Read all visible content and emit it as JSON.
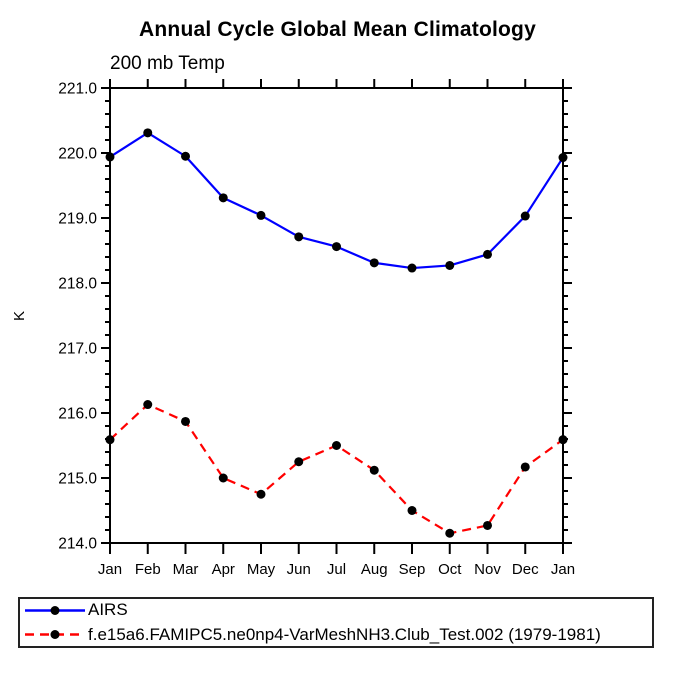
{
  "chart_data": {
    "type": "line",
    "title": "Annual Cycle Global Mean Climatology",
    "subtitle": "200 mb Temp",
    "xlabel": "",
    "ylabel": "K",
    "categories": [
      "Jan",
      "Feb",
      "Mar",
      "Apr",
      "May",
      "Jun",
      "Jul",
      "Aug",
      "Sep",
      "Oct",
      "Nov",
      "Dec",
      "Jan"
    ],
    "ylim": [
      214.0,
      221.0
    ],
    "ytick_interval": 1.0,
    "yminor_interval": 0.2,
    "ytick_labels": [
      "214.0",
      "215.0",
      "216.0",
      "217.0",
      "218.0",
      "219.0",
      "220.0",
      "221.0"
    ],
    "grid": false,
    "legend_position": "bottom-left",
    "axis_color": "#000000",
    "series": [
      {
        "name": "AIRS",
        "color": "#0000ff",
        "line_style": "solid",
        "marker": "circle",
        "marker_color": "#000000",
        "values": [
          219.94,
          220.31,
          219.95,
          219.31,
          219.04,
          218.71,
          218.56,
          218.31,
          218.23,
          218.27,
          218.44,
          219.03,
          219.93
        ]
      },
      {
        "name": "f.e15a6.FAMIPC5.ne0np4-VarMeshNH3.Club_Test.002 (1979-1981)",
        "color": "#ff0000",
        "line_style": "dashed",
        "marker": "circle",
        "marker_color": "#000000",
        "values": [
          215.59,
          216.13,
          215.87,
          215.0,
          214.75,
          215.25,
          215.5,
          215.12,
          214.5,
          214.15,
          214.27,
          215.17,
          215.59
        ]
      }
    ]
  }
}
